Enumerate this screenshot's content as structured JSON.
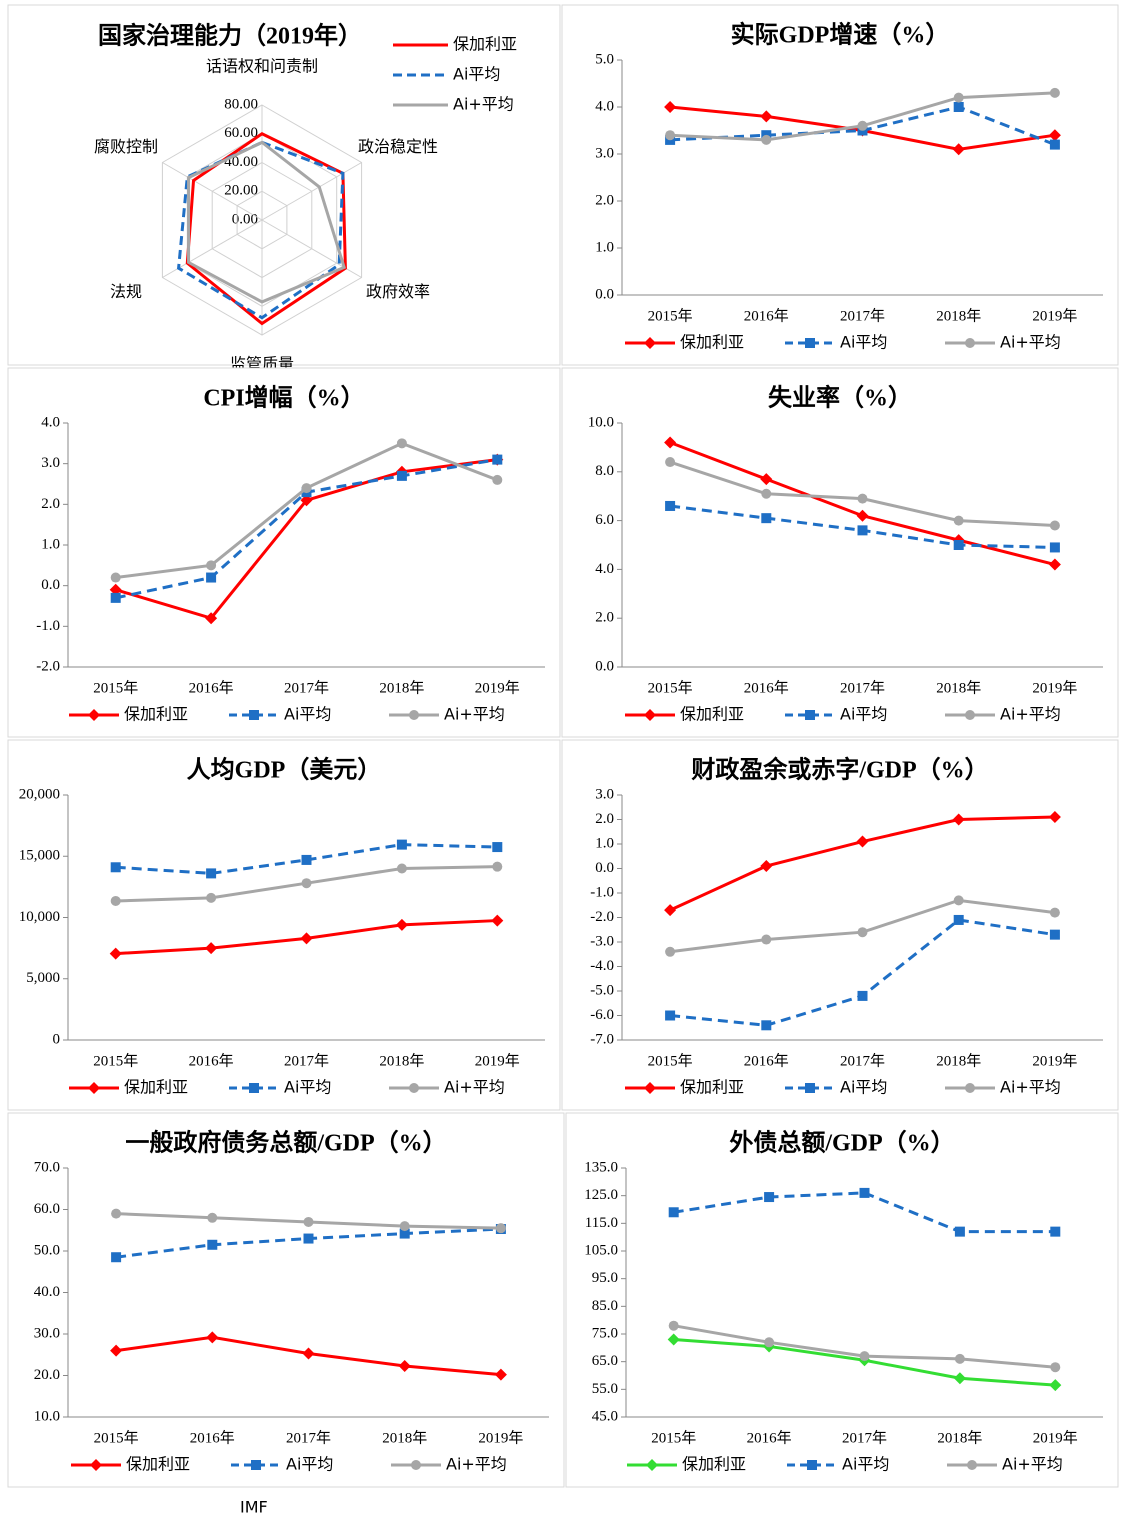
{
  "chart_data": [
    {
      "type": "radar",
      "title": "国家治理能力（2019年）",
      "categories": [
        "话语权和问责制",
        "政治稳定性",
        "政府效率",
        "监管质量",
        "法规",
        "腐败控制"
      ],
      "ylim": [
        0,
        80
      ],
      "yticks": [
        {
          "value": 0,
          "label": "0.00"
        },
        {
          "value": 20,
          "label": "20.00"
        },
        {
          "value": 40,
          "label": "40.00"
        },
        {
          "value": 60,
          "label": "60.00"
        },
        {
          "value": 80,
          "label": "80.00"
        }
      ],
      "series": [
        {
          "name": "保加利亚",
          "color": "#ff0000",
          "dashed": false,
          "values": [
            60,
            65,
            67,
            72,
            60,
            55
          ]
        },
        {
          "name": "Ai平均",
          "color": "#1f6fc5",
          "dashed": true,
          "values": [
            54,
            65,
            62,
            68,
            67,
            60
          ]
        },
        {
          "name": "Ai+平均",
          "color": "#a6a6a6",
          "dashed": false,
          "values": [
            54,
            46,
            66,
            57,
            59,
            59
          ]
        }
      ]
    },
    {
      "type": "line",
      "title": "实际GDP增速（%）",
      "categories": [
        "2015年",
        "2016年",
        "2017年",
        "2018年",
        "2019年"
      ],
      "ylim": [
        0,
        5
      ],
      "yticks": [
        {
          "value": 0,
          "label": "0.0"
        },
        {
          "value": 1,
          "label": "1.0"
        },
        {
          "value": 2,
          "label": "2.0"
        },
        {
          "value": 3,
          "label": "3.0"
        },
        {
          "value": 4,
          "label": "4.0"
        },
        {
          "value": 5,
          "label": "5.0"
        }
      ],
      "series": [
        {
          "name": "保加利亚",
          "color": "#ff0000",
          "dashed": false,
          "marker": "diamond",
          "values": [
            4.0,
            3.8,
            3.5,
            3.1,
            3.4
          ]
        },
        {
          "name": "Ai平均",
          "color": "#1f6fc5",
          "dashed": true,
          "marker": "square",
          "values": [
            3.3,
            3.4,
            3.5,
            4.0,
            3.2
          ]
        },
        {
          "name": "Ai+平均",
          "color": "#a6a6a6",
          "dashed": false,
          "marker": "circle",
          "values": [
            3.4,
            3.3,
            3.6,
            4.2,
            4.3
          ]
        }
      ]
    },
    {
      "type": "line",
      "title": "CPI增幅（%）",
      "categories": [
        "2015年",
        "2016年",
        "2017年",
        "2018年",
        "2019年"
      ],
      "ylim": [
        -2,
        4
      ],
      "yticks": [
        {
          "value": -2,
          "label": "-2.0"
        },
        {
          "value": -1,
          "label": "-1.0"
        },
        {
          "value": 0,
          "label": "0.0"
        },
        {
          "value": 1,
          "label": "1.0"
        },
        {
          "value": 2,
          "label": "2.0"
        },
        {
          "value": 3,
          "label": "3.0"
        },
        {
          "value": 4,
          "label": "4.0"
        }
      ],
      "series": [
        {
          "name": "保加利亚",
          "color": "#ff0000",
          "dashed": false,
          "marker": "diamond",
          "values": [
            -0.1,
            -0.8,
            2.1,
            2.8,
            3.1
          ]
        },
        {
          "name": "Ai平均",
          "color": "#1f6fc5",
          "dashed": true,
          "marker": "square",
          "values": [
            -0.3,
            0.2,
            2.3,
            2.7,
            3.1
          ]
        },
        {
          "name": "Ai+平均",
          "color": "#a6a6a6",
          "dashed": false,
          "marker": "circle",
          "values": [
            0.2,
            0.5,
            2.4,
            3.5,
            2.6
          ]
        }
      ]
    },
    {
      "type": "line",
      "title": "失业率（%）",
      "categories": [
        "2015年",
        "2016年",
        "2017年",
        "2018年",
        "2019年"
      ],
      "ylim": [
        0,
        10
      ],
      "yticks": [
        {
          "value": 0,
          "label": "0.0"
        },
        {
          "value": 2,
          "label": "2.0"
        },
        {
          "value": 4,
          "label": "4.0"
        },
        {
          "value": 6,
          "label": "6.0"
        },
        {
          "value": 8,
          "label": "8.0"
        },
        {
          "value": 10,
          "label": "10.0"
        }
      ],
      "series": [
        {
          "name": "保加利亚",
          "color": "#ff0000",
          "dashed": false,
          "marker": "diamond",
          "values": [
            9.2,
            7.7,
            6.2,
            5.2,
            4.2
          ]
        },
        {
          "name": "Ai平均",
          "color": "#1f6fc5",
          "dashed": true,
          "marker": "square",
          "values": [
            6.6,
            6.1,
            5.6,
            5.0,
            4.9
          ]
        },
        {
          "name": "Ai+平均",
          "color": "#a6a6a6",
          "dashed": false,
          "marker": "circle",
          "values": [
            8.4,
            7.1,
            6.9,
            6.0,
            5.8
          ]
        }
      ]
    },
    {
      "type": "line",
      "title": "人均GDP（美元）",
      "categories": [
        "2015年",
        "2016年",
        "2017年",
        "2018年",
        "2019年"
      ],
      "ylim": [
        0,
        20000
      ],
      "yticks": [
        0,
        {
          "value": 5000,
          "label": "5,000"
        },
        {
          "value": 10000,
          "label": "10,000"
        },
        {
          "value": 15000,
          "label": "15,000"
        },
        {
          "value": 20000,
          "label": "20,000"
        }
      ],
      "series": [
        {
          "name": "保加利亚",
          "color": "#ff0000",
          "dashed": false,
          "marker": "diamond",
          "values": [
            7050,
            7500,
            8300,
            9400,
            9750
          ]
        },
        {
          "name": "Ai平均",
          "color": "#1f6fc5",
          "dashed": true,
          "marker": "square",
          "values": [
            14100,
            13600,
            14700,
            15950,
            15750
          ]
        },
        {
          "name": "Ai+平均",
          "color": "#a6a6a6",
          "dashed": false,
          "marker": "circle",
          "values": [
            11350,
            11600,
            12800,
            14000,
            14150
          ]
        }
      ]
    },
    {
      "type": "line",
      "title": "财政盈余或赤字/GDP（%）",
      "categories": [
        "2015年",
        "2016年",
        "2017年",
        "2018年",
        "2019年"
      ],
      "ylim": [
        -7,
        3
      ],
      "yticks": [
        {
          "value": -7,
          "label": "-7.0"
        },
        {
          "value": -6,
          "label": "-6.0"
        },
        {
          "value": -5,
          "label": "-5.0"
        },
        {
          "value": -4,
          "label": "-4.0"
        },
        {
          "value": -3,
          "label": "-3.0"
        },
        {
          "value": -2,
          "label": "-2.0"
        },
        {
          "value": -1,
          "label": "-1.0"
        },
        {
          "value": 0,
          "label": "0.0"
        },
        {
          "value": 1,
          "label": "1.0"
        },
        {
          "value": 2,
          "label": "2.0"
        },
        {
          "value": 3,
          "label": "3.0"
        }
      ],
      "series": [
        {
          "name": "保加利亚",
          "color": "#ff0000",
          "dashed": false,
          "marker": "diamond",
          "values": [
            -1.7,
            0.1,
            1.1,
            2.0,
            2.1
          ]
        },
        {
          "name": "Ai平均",
          "color": "#1f6fc5",
          "dashed": true,
          "marker": "square",
          "values": [
            -6.0,
            -6.4,
            -5.2,
            -2.1,
            -2.7
          ]
        },
        {
          "name": "Ai+平均",
          "color": "#a6a6a6",
          "dashed": false,
          "marker": "circle",
          "values": [
            -3.4,
            -2.9,
            -2.6,
            -1.3,
            -1.8
          ]
        }
      ]
    },
    {
      "type": "line",
      "title": "一般政府债务总额/GDP（%）",
      "categories": [
        "2015年",
        "2016年",
        "2017年",
        "2018年",
        "2019年"
      ],
      "ylim": [
        10,
        70
      ],
      "yticks": [
        {
          "value": 10,
          "label": "10.0"
        },
        {
          "value": 20,
          "label": "20.0"
        },
        {
          "value": 30,
          "label": "30.0"
        },
        {
          "value": 40,
          "label": "40.0"
        },
        {
          "value": 50,
          "label": "50.0"
        },
        {
          "value": 60,
          "label": "60.0"
        },
        {
          "value": 70,
          "label": "70.0"
        }
      ],
      "series": [
        {
          "name": "保加利亚",
          "color": "#ff0000",
          "dashed": false,
          "marker": "diamond",
          "values": [
            26.0,
            29.2,
            25.3,
            22.3,
            20.2
          ]
        },
        {
          "name": "Ai平均",
          "color": "#1f6fc5",
          "dashed": true,
          "marker": "square",
          "values": [
            48.5,
            51.5,
            53.0,
            54.2,
            55.3
          ]
        },
        {
          "name": "Ai+平均",
          "color": "#a6a6a6",
          "dashed": false,
          "marker": "circle",
          "values": [
            59.0,
            58.0,
            57.0,
            56.0,
            55.5
          ]
        }
      ]
    },
    {
      "type": "line",
      "title": "外债总额/GDP（%）",
      "categories": [
        "2015年",
        "2016年",
        "2017年",
        "2018年",
        "2019年"
      ],
      "ylim": [
        45,
        135
      ],
      "yticks": [
        {
          "value": 45,
          "label": "45.0"
        },
        {
          "value": 55,
          "label": "55.0"
        },
        {
          "value": 65,
          "label": "65.0"
        },
        {
          "value": 75,
          "label": "75.0"
        },
        {
          "value": 85,
          "label": "85.0"
        },
        {
          "value": 95,
          "label": "95.0"
        },
        {
          "value": 105,
          "label": "105.0"
        },
        {
          "value": 115,
          "label": "115.0"
        },
        {
          "value": 125,
          "label": "125.0"
        },
        {
          "value": 135,
          "label": "135.0"
        }
      ],
      "series": [
        {
          "name": "保加利亚",
          "color": "#33dd33",
          "dashed": false,
          "marker": "diamond",
          "values": [
            73,
            70.5,
            65.5,
            59,
            56.5
          ]
        },
        {
          "name": "Ai平均",
          "color": "#1f6fc5",
          "dashed": true,
          "marker": "square",
          "values": [
            119,
            124.5,
            126,
            112,
            112
          ]
        },
        {
          "name": "Ai+平均",
          "color": "#a6a6a6",
          "dashed": false,
          "marker": "circle",
          "values": [
            78,
            72,
            67,
            66,
            63
          ]
        }
      ]
    }
  ],
  "source": "IMF"
}
